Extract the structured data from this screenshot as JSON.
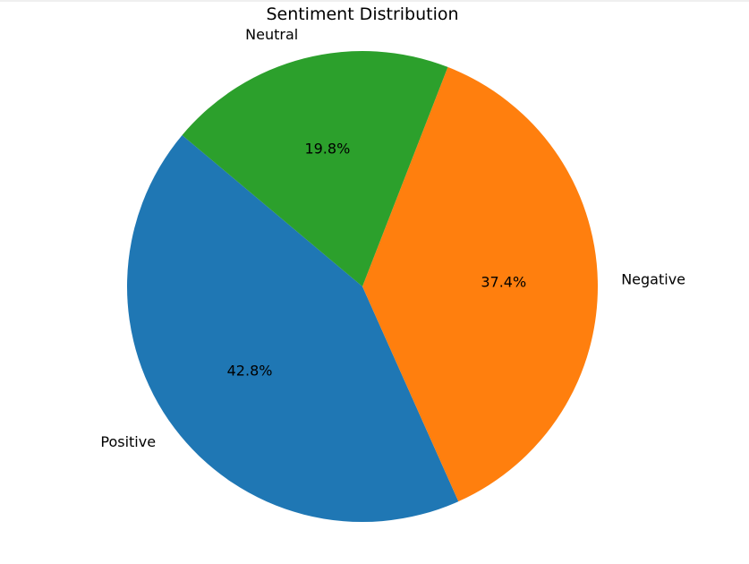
{
  "chart_data": {
    "type": "pie",
    "title": "Sentiment Distribution",
    "categories": [
      "Positive",
      "Negative",
      "Neutral"
    ],
    "values": [
      42.8,
      37.4,
      19.8
    ],
    "value_labels": [
      "42.8%",
      "37.4%",
      "19.8%"
    ],
    "colors": [
      "#1f77b4",
      "#ff7f0e",
      "#2ca02c"
    ],
    "start_angle_deg": 140,
    "direction": "counterclockwise",
    "legend": "none"
  }
}
